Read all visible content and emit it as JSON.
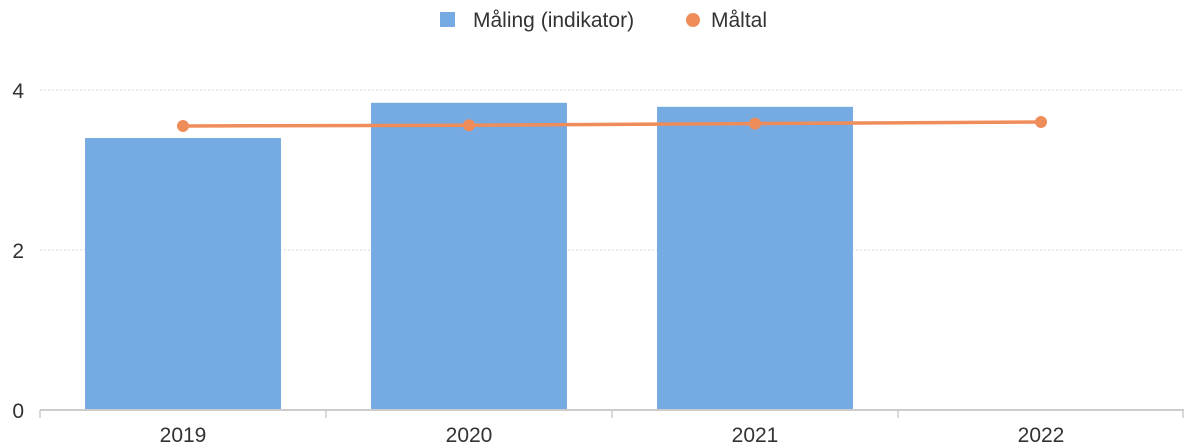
{
  "chart_data": {
    "type": "bar",
    "categories": [
      "2019",
      "2020",
      "2021",
      "2022"
    ],
    "series": [
      {
        "name": "Måling (indikator)",
        "type": "bar",
        "values": [
          3.4,
          3.84,
          3.79,
          null
        ]
      },
      {
        "name": "Måltal",
        "type": "line",
        "values": [
          3.55,
          3.56,
          3.58,
          3.6
        ]
      }
    ],
    "ylim": [
      0,
      4
    ],
    "yticks": [
      0,
      2,
      4
    ],
    "grid": true,
    "legend": "top-center",
    "colors": {
      "bar": "#76aae2",
      "line": "#ee8d5a",
      "grid": "#d9d9d9",
      "axis": "#cccccc"
    }
  }
}
